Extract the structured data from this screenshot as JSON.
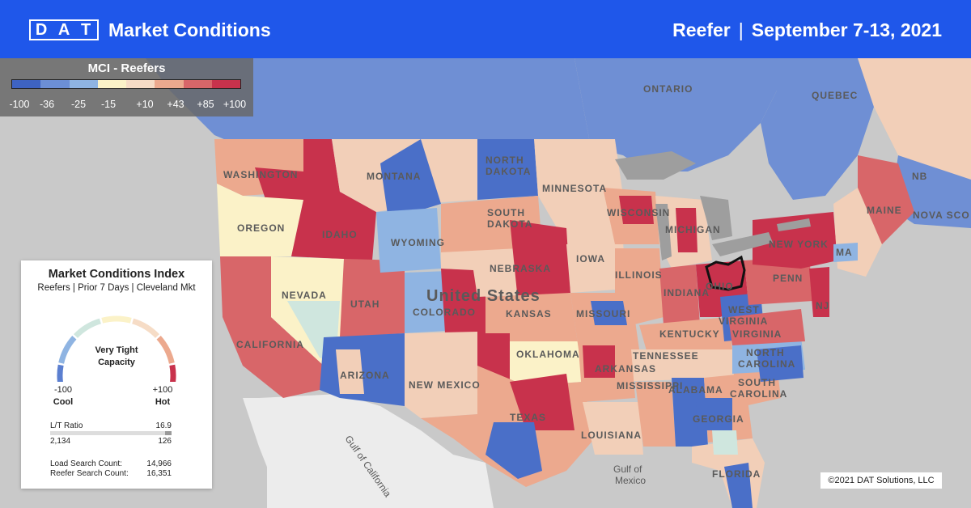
{
  "header": {
    "logo_letters": [
      "D",
      "A",
      "T"
    ],
    "title": "Market Conditions",
    "equipment": "Reefer",
    "separator": "|",
    "date_range": "September 7-13, 2021"
  },
  "scale": {
    "title": "MCI - Reefers",
    "colors": [
      "#3e63c2",
      "#6c8fd6",
      "#8fb4e2",
      "#fbf2c8",
      "#f6dcc6",
      "#eca98e",
      "#d86669",
      "#c8324c"
    ],
    "ticks": [
      "-100",
      "-36",
      "-25",
      "-15",
      "+10",
      "+43",
      "+85",
      "+100"
    ]
  },
  "card": {
    "title": "Market Conditions Index",
    "subtitle": "Reefers | Prior 7 Days | Cleveland Mkt",
    "gauge_label_line1": "Very Tight",
    "gauge_label_line2": "Capacity",
    "gauge_value": 100,
    "min_value": "-100",
    "min_label": "Cool",
    "max_value": "+100",
    "max_label": "Hot",
    "lt_ratio_label": "L/T Ratio",
    "lt_ratio_value": "16.9",
    "lt_left": "2,134",
    "lt_right": "126",
    "load_search_label": "Load Search Count:",
    "load_search_value": "14,966",
    "reefer_search_label": "Reefer Search Count:",
    "reefer_search_value": "16,351"
  },
  "map_labels": {
    "ontario": "ONTARIO",
    "quebec": "QUEBEC",
    "nb": "NB",
    "nova_scotia": "NOVA SCO",
    "washington": "WASHINGTON",
    "montana": "MONTANA",
    "north_dakota_1": "NORTH",
    "north_dakota_2": "DAKOTA",
    "minnesota": "MINNESOTA",
    "oregon": "OREGON",
    "idaho": "IDAHO",
    "south_dakota_1": "SOUTH",
    "south_dakota_2": "DAKOTA",
    "wisconsin": "WISCONSIN",
    "michigan": "MICHIGAN",
    "wyoming": "WYOMING",
    "maine": "MAINE",
    "new_york": "NEW YORK",
    "ma": "MA",
    "nebraska": "NEBRASKA",
    "iowa": "IOWA",
    "nevada": "NEVADA",
    "united_states": "United States",
    "illinois": "ILLINOIS",
    "indiana": "INDIANA",
    "ohio": "OHIO",
    "penn": "PENN",
    "nj": "NJ",
    "utah": "UTAH",
    "colorado": "COLORADO",
    "kansas": "KANSAS",
    "missouri": "MISSOURI",
    "west_virginia_1": "WEST",
    "west_virginia_2": "VIRGINIA",
    "kentucky": "KENTUCKY",
    "virginia": "VIRGINIA",
    "california": "CALIFORNIA",
    "oklahoma": "OKLAHOMA",
    "tennessee": "TENNESSEE",
    "north_carolina_1": "NORTH",
    "north_carolina_2": "CAROLINA",
    "arizona": "ARIZONA",
    "new_mexico": "NEW MEXICO",
    "arkansas": "ARKANSAS",
    "mississippi": "MISSISSIPPI",
    "alabama": "ALABAMA",
    "south_carolina_1": "SOUTH",
    "south_carolina_2": "CAROLINA",
    "georgia": "GEORGIA",
    "texas": "TEXAS",
    "louisiana": "LOUISIANA",
    "florida": "FLORIDA",
    "gulf_of_california": "Gulf of California",
    "gulf_of_mexico_1": "Gulf of",
    "gulf_of_mexico_2": "Mexico"
  },
  "copyright": "©2021 DAT Solutions, LLC"
}
